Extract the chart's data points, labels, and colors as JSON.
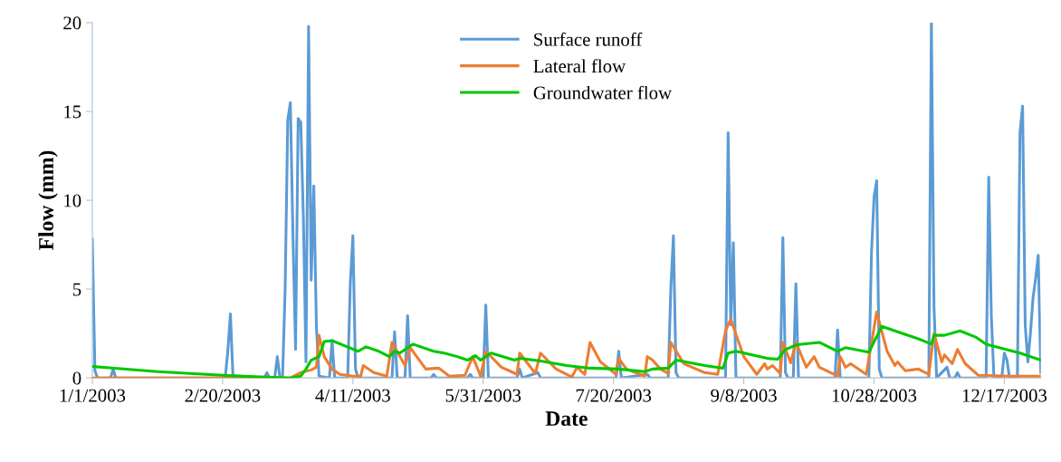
{
  "chart_data": {
    "type": "line",
    "xlabel": "Date",
    "ylabel": "Flow (mm)",
    "xlim": [
      "2003-01-01",
      "2003-12-31"
    ],
    "xticks": [
      {
        "value": "2003-01-01",
        "label": "1/1/2003"
      },
      {
        "value": "2003-02-20",
        "label": "2/20/2003"
      },
      {
        "value": "2003-04-11",
        "label": "4/11/2003"
      },
      {
        "value": "2003-05-31",
        "label": "5/31/2003"
      },
      {
        "value": "2003-07-20",
        "label": "7/20/2003"
      },
      {
        "value": "2003-09-08",
        "label": "9/8/2003"
      },
      {
        "value": "2003-10-28",
        "label": "10/28/2003"
      },
      {
        "value": "2003-12-17",
        "label": "12/17/2003"
      }
    ],
    "ylim": [
      0,
      20
    ],
    "yticks": [
      0,
      5,
      10,
      15,
      20
    ],
    "grid": false,
    "legend": "top",
    "marker": "none",
    "line_style": "solid",
    "series": [
      {
        "name": "Surface runoff",
        "color": "#5b9bd5",
        "x": [
          "2003-01-01",
          "2003-01-02",
          "2003-01-03",
          "2003-01-08",
          "2003-01-09",
          "2003-01-10",
          "2003-02-21",
          "2003-02-22",
          "2003-02-23",
          "2003-02-24",
          "2003-03-08",
          "2003-03-09",
          "2003-03-10",
          "2003-03-12",
          "2003-03-13",
          "2003-03-14",
          "2003-03-15",
          "2003-03-16",
          "2003-03-17",
          "2003-03-18",
          "2003-03-19",
          "2003-03-20",
          "2003-03-21",
          "2003-03-22",
          "2003-03-23",
          "2003-03-24",
          "2003-03-25",
          "2003-03-26",
          "2003-03-27",
          "2003-03-28",
          "2003-03-29",
          "2003-04-02",
          "2003-04-03",
          "2003-04-04",
          "2003-04-09",
          "2003-04-10",
          "2003-04-11",
          "2003-04-12",
          "2003-04-13",
          "2003-04-26",
          "2003-04-27",
          "2003-04-28",
          "2003-05-01",
          "2003-05-02",
          "2003-05-03",
          "2003-05-11",
          "2003-05-12",
          "2003-05-13",
          "2003-05-25",
          "2003-05-26",
          "2003-05-27",
          "2003-05-31",
          "2003-06-01",
          "2003-06-02",
          "2003-06-13",
          "2003-06-14",
          "2003-06-15",
          "2003-06-21",
          "2003-06-22",
          "2003-07-21",
          "2003-07-22",
          "2003-07-23",
          "2003-08-02",
          "2003-08-03",
          "2003-08-10",
          "2003-08-11",
          "2003-08-12",
          "2003-08-13",
          "2003-08-14",
          "2003-09-01",
          "2003-09-02",
          "2003-09-03",
          "2003-09-04",
          "2003-09-05",
          "2003-09-22",
          "2003-09-23",
          "2003-09-24",
          "2003-09-25",
          "2003-09-27",
          "2003-09-28",
          "2003-09-29",
          "2003-10-13",
          "2003-10-14",
          "2003-10-15",
          "2003-10-26",
          "2003-10-27",
          "2003-10-28",
          "2003-10-29",
          "2003-10-30",
          "2003-10-31",
          "2003-11-18",
          "2003-11-19",
          "2003-11-20",
          "2003-11-21",
          "2003-11-25",
          "2003-11-26",
          "2003-11-28",
          "2003-11-29",
          "2003-11-30",
          "2003-12-10",
          "2003-12-11",
          "2003-12-12",
          "2003-12-13",
          "2003-12-16",
          "2003-12-17",
          "2003-12-18",
          "2003-12-19",
          "2003-12-22",
          "2003-12-23",
          "2003-12-24",
          "2003-12-25",
          "2003-12-26",
          "2003-12-27",
          "2003-12-28",
          "2003-12-29",
          "2003-12-30",
          "2003-12-31"
        ],
        "values": [
          7.8,
          0.4,
          0,
          0,
          0.5,
          0,
          0,
          1.5,
          3.6,
          0,
          0,
          0.3,
          0,
          0,
          1.2,
          0,
          0,
          5,
          14.5,
          15.5,
          8,
          1.6,
          14.6,
          14.4,
          9,
          0.9,
          19.8,
          5.5,
          10.8,
          2.9,
          0.1,
          0,
          2.1,
          0,
          0,
          5.3,
          8,
          0.5,
          0,
          0,
          2.6,
          0,
          0,
          3.5,
          0,
          0,
          0.2,
          0,
          0,
          0.2,
          0,
          0,
          4.1,
          0,
          0,
          0.5,
          0,
          0.3,
          0,
          0,
          1.5,
          0,
          0.2,
          0,
          0,
          5,
          8,
          0.3,
          0,
          0,
          13.8,
          3,
          7.6,
          0,
          0,
          7.9,
          0.3,
          0,
          0,
          5.3,
          0,
          0,
          2.7,
          0,
          0,
          7,
          10.2,
          11.1,
          0.5,
          0,
          0,
          20,
          4,
          0,
          0.6,
          0,
          0,
          0.3,
          0,
          0,
          11.3,
          3.5,
          0,
          0,
          1.4,
          1.0,
          0,
          0,
          13.8,
          15.3,
          3,
          0.9,
          2.5,
          4.5,
          5.6,
          6.9,
          0.3
        ]
      },
      {
        "name": "Lateral flow",
        "color": "#ed7d31",
        "x": [
          "2003-01-01",
          "2003-03-18",
          "2003-03-22",
          "2003-03-26",
          "2003-03-28",
          "2003-03-29",
          "2003-03-31",
          "2003-04-03",
          "2003-04-06",
          "2003-04-11",
          "2003-04-14",
          "2003-04-15",
          "2003-04-19",
          "2003-04-24",
          "2003-04-26",
          "2003-05-01",
          "2003-05-03",
          "2003-05-09",
          "2003-05-14",
          "2003-05-18",
          "2003-05-24",
          "2003-05-27",
          "2003-05-30",
          "2003-06-01",
          "2003-06-07",
          "2003-06-13",
          "2003-06-14",
          "2003-06-20",
          "2003-06-22",
          "2003-06-28",
          "2003-07-04",
          "2003-07-06",
          "2003-07-09",
          "2003-07-11",
          "2003-07-15",
          "2003-07-21",
          "2003-07-22",
          "2003-07-25",
          "2003-08-01",
          "2003-08-02",
          "2003-08-04",
          "2003-08-07",
          "2003-08-10",
          "2003-08-11",
          "2003-08-16",
          "2003-08-24",
          "2003-08-29",
          "2003-09-01",
          "2003-09-03",
          "2003-09-08",
          "2003-09-13",
          "2003-09-16",
          "2003-09-17",
          "2003-09-19",
          "2003-09-22",
          "2003-09-23",
          "2003-09-26",
          "2003-09-28",
          "2003-10-02",
          "2003-10-05",
          "2003-10-07",
          "2003-10-14",
          "2003-10-15",
          "2003-10-17",
          "2003-10-19",
          "2003-10-25",
          "2003-10-29",
          "2003-11-02",
          "2003-11-05",
          "2003-11-06",
          "2003-11-09",
          "2003-11-14",
          "2003-11-18",
          "2003-11-20",
          "2003-11-23",
          "2003-11-24",
          "2003-11-27",
          "2003-11-29",
          "2003-12-02",
          "2003-12-07",
          "2003-12-19",
          "2003-12-31"
        ],
        "values": [
          0,
          0,
          0.3,
          0.45,
          0.6,
          2.4,
          1.2,
          0.5,
          0.2,
          0.1,
          0.1,
          0.7,
          0.3,
          0.1,
          2.0,
          0.7,
          1.7,
          0.5,
          0.55,
          0.1,
          0.15,
          1.2,
          0.1,
          1.5,
          0.6,
          0.2,
          1.4,
          0.25,
          1.4,
          0.5,
          0.05,
          0.6,
          0.2,
          2.0,
          0.9,
          0.2,
          1.1,
          0.5,
          0.1,
          1.2,
          1.0,
          0.5,
          0.25,
          2.0,
          0.8,
          0.3,
          0.2,
          2.65,
          3.3,
          1.2,
          0.2,
          0.8,
          0.5,
          0.7,
          0.25,
          2.0,
          0.85,
          2.0,
          0.6,
          1.2,
          0.6,
          0.1,
          1.2,
          0.6,
          0.8,
          0.2,
          3.7,
          1.5,
          0.7,
          0.9,
          0.4,
          0.5,
          0.2,
          2.5,
          0.9,
          1.3,
          0.8,
          1.6,
          0.8,
          0.15,
          0.1,
          0.1
        ]
      },
      {
        "name": "Groundwater flow",
        "color": "#00c800",
        "x": [
          "2003-01-01",
          "2003-01-26",
          "2003-02-20",
          "2003-03-02",
          "2003-03-18",
          "2003-03-22",
          "2003-03-24",
          "2003-03-26",
          "2003-03-29",
          "2003-03-31",
          "2003-04-03",
          "2003-04-08",
          "2003-04-13",
          "2003-04-16",
          "2003-04-21",
          "2003-04-25",
          "2003-04-27",
          "2003-04-29",
          "2003-05-04",
          "2003-05-12",
          "2003-05-16",
          "2003-05-21",
          "2003-05-25",
          "2003-05-28",
          "2003-05-30",
          "2003-06-03",
          "2003-06-12",
          "2003-06-14",
          "2003-06-22",
          "2003-07-02",
          "2003-07-11",
          "2003-07-22",
          "2003-08-01",
          "2003-08-04",
          "2003-08-10",
          "2003-08-13",
          "2003-08-24",
          "2003-08-31",
          "2003-09-02",
          "2003-09-05",
          "2003-09-17",
          "2003-09-21",
          "2003-09-24",
          "2003-09-28",
          "2003-09-30",
          "2003-10-07",
          "2003-10-14",
          "2003-10-17",
          "2003-10-26",
          "2003-10-31",
          "2003-11-06",
          "2003-11-14",
          "2003-11-19",
          "2003-11-20",
          "2003-11-24",
          "2003-11-30",
          "2003-12-06",
          "2003-12-10",
          "2003-12-23",
          "2003-12-31"
        ],
        "values": [
          0.65,
          0.35,
          0.15,
          0.08,
          0.0,
          0.1,
          0.5,
          1.0,
          1.2,
          2.05,
          2.1,
          1.8,
          1.5,
          1.75,
          1.5,
          1.2,
          1.5,
          1.4,
          1.9,
          1.5,
          1.4,
          1.2,
          1.0,
          1.25,
          1.0,
          1.4,
          1.0,
          1.1,
          0.95,
          0.7,
          0.55,
          0.5,
          0.35,
          0.5,
          0.55,
          1.0,
          0.7,
          0.55,
          1.4,
          1.5,
          1.1,
          1.05,
          1.6,
          1.85,
          1.9,
          2.0,
          1.5,
          1.7,
          1.45,
          2.9,
          2.6,
          2.2,
          1.9,
          2.4,
          2.4,
          2.65,
          2.3,
          1.9,
          1.4,
          1.0
        ]
      }
    ]
  }
}
